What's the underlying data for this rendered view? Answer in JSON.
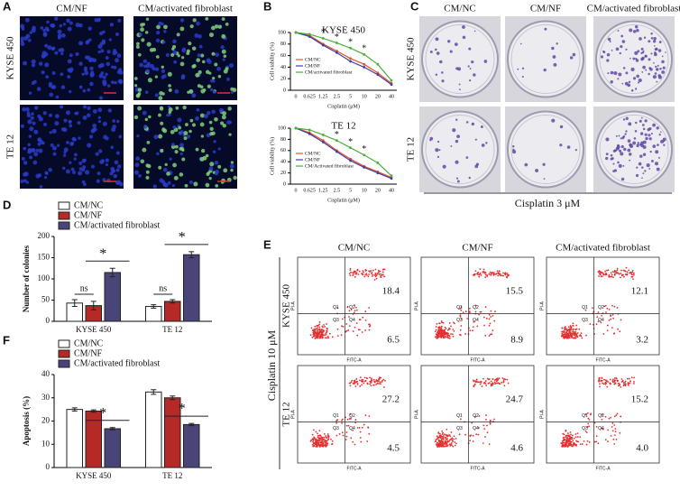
{
  "letters": [
    "A",
    "B",
    "C",
    "D",
    "E",
    "F"
  ],
  "panel_a": {
    "columns": [
      "CM/NF",
      "CM/activated fibroblast"
    ],
    "rows": [
      "KYSE 450",
      "TE 12"
    ]
  },
  "panel_c": {
    "columns": [
      "CM/NC",
      "CM/NF",
      "CM/activated fibroblast"
    ],
    "rows": [
      "KYSE 450",
      "TE 12"
    ],
    "caption": "Cisplatin 3 μM"
  },
  "panel_e": {
    "columns": [
      "CM/NC",
      "CM/NF",
      "CM/activated fibroblast"
    ],
    "condition": "Cisplatin 10 μM",
    "rows": [
      {
        "label": "KYSE 450",
        "upper_right": [
          "18.4",
          "15.5",
          "12.1"
        ],
        "lower_right": [
          "6.5",
          "8.9",
          "3.2"
        ]
      },
      {
        "label": "TE 12",
        "upper_right": [
          "27.2",
          "24.7",
          "15.2"
        ],
        "lower_right": [
          "4.5",
          "4.6",
          "4.0"
        ]
      }
    ],
    "x_axis": "FITC-A",
    "y_axis": "PI-A",
    "quadrants": [
      "Q1",
      "Q2",
      "Q3",
      "Q4"
    ]
  },
  "chart_data": [
    {
      "type": "line",
      "title": "KYSE 450",
      "xlabel": "Cisplatin (μM)",
      "ylabel": "Cell viability (%)",
      "categories": [
        "0",
        "0.625",
        "1.25",
        "2.5",
        "5",
        "10",
        "20",
        "40"
      ],
      "ylim": [
        0,
        100
      ],
      "yticks": [
        0,
        20,
        40,
        60,
        80,
        100
      ],
      "legend": "lower left",
      "series": [
        {
          "name": "CM/NC",
          "color": "#e8502a",
          "values": [
            100,
            95,
            80,
            68,
            55,
            45,
            30,
            12
          ]
        },
        {
          "name": "CM/NF",
          "color": "#3b3fa8",
          "values": [
            100,
            93,
            78,
            65,
            50,
            40,
            27,
            10
          ]
        },
        {
          "name": "CM/activated fibroblast",
          "color": "#4caf3a",
          "values": [
            100,
            97,
            90,
            82,
            73,
            62,
            45,
            17
          ]
        }
      ],
      "annotations": [
        "*",
        "*",
        "*",
        "*"
      ]
    },
    {
      "type": "line",
      "title": "TE 12",
      "xlabel": "Cisplatin (μM)",
      "ylabel": "Cell viability (%)",
      "categories": [
        "0",
        "0.625",
        "1.25",
        "2.5",
        "5",
        "10",
        "20",
        "40"
      ],
      "ylim": [
        0,
        100
      ],
      "yticks": [
        0,
        20,
        40,
        60,
        80,
        100
      ],
      "legend": "lower left",
      "series": [
        {
          "name": "CM/NC",
          "color": "#e8502a",
          "values": [
            100,
            92,
            78,
            60,
            45,
            32,
            22,
            12
          ]
        },
        {
          "name": "CM/NF",
          "color": "#3b3fa8",
          "values": [
            100,
            90,
            75,
            58,
            42,
            30,
            20,
            10
          ]
        },
        {
          "name": "CM/Activated fibroblast",
          "color": "#4caf3a",
          "values": [
            100,
            97,
            88,
            78,
            65,
            52,
            38,
            15
          ]
        }
      ],
      "annotations": [
        "*",
        "*",
        "*"
      ]
    },
    {
      "type": "bar",
      "ylabel": "Number of colonies",
      "categories": [
        "KYSE 450",
        "TE 12"
      ],
      "ylim": [
        0,
        200
      ],
      "yticks": [
        0,
        50,
        100,
        150,
        200
      ],
      "legend": "top",
      "series": [
        {
          "name": "CM/NC",
          "color": "#ffffff",
          "values": [
            43,
            35
          ],
          "errors": [
            8,
            4
          ]
        },
        {
          "name": "CM/NF",
          "color": "#b52a26",
          "values": [
            37,
            47
          ],
          "errors": [
            10,
            4
          ]
        },
        {
          "name": "CM/activated fibroblast",
          "color": "#4a4578",
          "values": [
            115,
            157
          ],
          "errors": [
            10,
            7
          ]
        }
      ],
      "annotations": [
        "ns",
        "*",
        "ns",
        "*"
      ]
    },
    {
      "type": "bar",
      "ylabel": "Apoptosis (%)",
      "categories": [
        "KYSE 450",
        "TE 12"
      ],
      "ylim": [
        0,
        40
      ],
      "yticks": [
        0,
        10,
        20,
        30,
        40
      ],
      "legend": "top",
      "series": [
        {
          "name": "CM/NC",
          "color": "#ffffff",
          "values": [
            25,
            32.5
          ],
          "errors": [
            0.7,
            1
          ]
        },
        {
          "name": "CM/NF",
          "color": "#b52a26",
          "values": [
            24.3,
            30
          ],
          "errors": [
            0.5,
            0.8
          ]
        },
        {
          "name": "CM/activated fibroblast",
          "color": "#4a4578",
          "values": [
            16.7,
            18.5
          ],
          "errors": [
            0.5,
            0.5
          ]
        }
      ],
      "annotations": [
        "*",
        "*"
      ]
    }
  ]
}
